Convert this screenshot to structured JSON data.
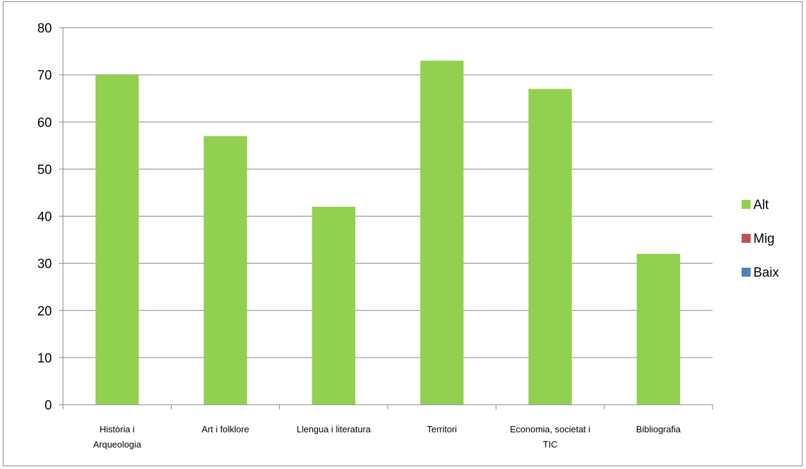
{
  "chart_data": {
    "type": "bar",
    "categories": [
      [
        "Història i",
        "Arqueologia"
      ],
      [
        "Art i folklore"
      ],
      [
        "Llengua i literatura"
      ],
      [
        "Territori"
      ],
      [
        "Economia, societat i",
        "TIC"
      ],
      [
        "Bibliografia"
      ]
    ],
    "series": [
      {
        "name": "Alt",
        "color": "#92d050",
        "values": [
          70,
          57,
          42,
          73,
          67,
          32
        ]
      },
      {
        "name": "Mig",
        "color": "#c0504d",
        "values": [
          0,
          0,
          0,
          0,
          0,
          0
        ]
      },
      {
        "name": "Baix",
        "color": "#4f81bd",
        "values": [
          0,
          0,
          0,
          0,
          0,
          0
        ]
      }
    ],
    "ylim": [
      0,
      80
    ],
    "yticks": [
      "0",
      "10",
      "20",
      "30",
      "40",
      "50",
      "60",
      "70",
      "80"
    ],
    "grid": true,
    "legend_position": "right",
    "title": "",
    "xlabel": "",
    "ylabel": ""
  }
}
